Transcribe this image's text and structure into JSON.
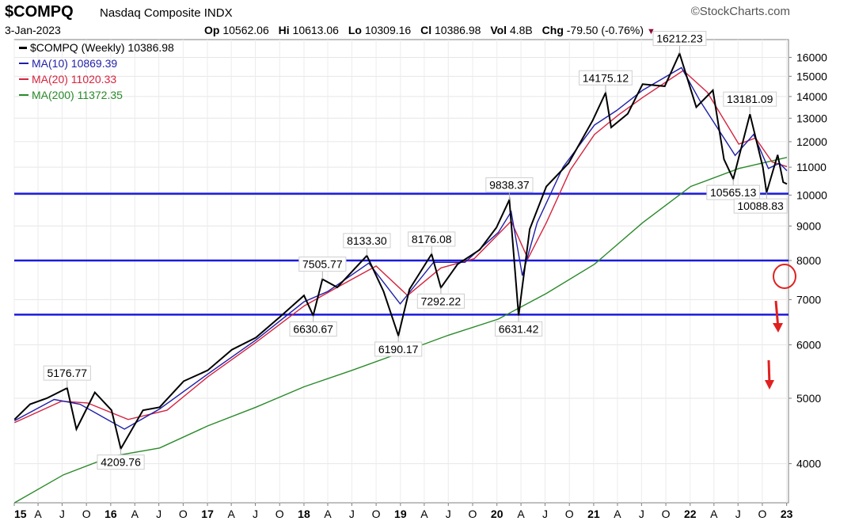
{
  "header": {
    "ticker": "$COMPQ",
    "name": "Nasdaq Composite",
    "exchange": "INDX",
    "brand": "StockCharts.com",
    "brand_icon": "copyright-icon",
    "date": "3-Jan-2023",
    "quote": [
      {
        "label": "Op",
        "value": "10562.06"
      },
      {
        "label": "Hi",
        "value": "10613.06"
      },
      {
        "label": "Lo",
        "value": "10309.16"
      },
      {
        "label": "Cl",
        "value": "10386.98"
      },
      {
        "label": "Vol",
        "value": "4.8B"
      },
      {
        "label": "Chg",
        "value": "-79.50 (-0.76%)"
      }
    ],
    "chg_icon": "down-triangle-icon"
  },
  "legend": [
    {
      "text": "$COMPQ (Weekly) 10386.98",
      "color": "#000000",
      "icon": "candlestick-icon"
    },
    {
      "text": "MA(10) 10869.39",
      "color": "#1f1fa8"
    },
    {
      "text": "MA(20) 11020.33",
      "color": "#d4243f"
    },
    {
      "text": "MA(200) 11372.35",
      "color": "#2a8a2a"
    }
  ],
  "chart_data": {
    "type": "line",
    "title": "$COMPQ (Weekly)",
    "y_scale": "log",
    "ylim": [
      3500,
      17000
    ],
    "y_ticks": [
      4000,
      5000,
      6000,
      7000,
      8000,
      9000,
      10000,
      11000,
      12000,
      13000,
      14000,
      15000,
      16000
    ],
    "xlim": [
      "2015-01-01",
      "2023-01-08"
    ],
    "x_ticks": [
      {
        "label": "15",
        "date": "2015-01-01",
        "bold": true
      },
      {
        "label": "A",
        "date": "2015-04-01"
      },
      {
        "label": "J",
        "date": "2015-07-01"
      },
      {
        "label": "O",
        "date": "2015-10-01"
      },
      {
        "label": "16",
        "date": "2016-01-01",
        "bold": true
      },
      {
        "label": "A",
        "date": "2016-04-01"
      },
      {
        "label": "J",
        "date": "2016-07-01"
      },
      {
        "label": "O",
        "date": "2016-10-01"
      },
      {
        "label": "17",
        "date": "2017-01-01",
        "bold": true
      },
      {
        "label": "A",
        "date": "2017-04-01"
      },
      {
        "label": "J",
        "date": "2017-07-01"
      },
      {
        "label": "O",
        "date": "2017-10-01"
      },
      {
        "label": "18",
        "date": "2018-01-01",
        "bold": true
      },
      {
        "label": "A",
        "date": "2018-04-01"
      },
      {
        "label": "J",
        "date": "2018-07-01"
      },
      {
        "label": "O",
        "date": "2018-10-01"
      },
      {
        "label": "19",
        "date": "2019-01-01",
        "bold": true
      },
      {
        "label": "A",
        "date": "2019-04-01"
      },
      {
        "label": "J",
        "date": "2019-07-01"
      },
      {
        "label": "O",
        "date": "2019-10-01"
      },
      {
        "label": "20",
        "date": "2020-01-01",
        "bold": true
      },
      {
        "label": "A",
        "date": "2020-04-01"
      },
      {
        "label": "J",
        "date": "2020-07-01"
      },
      {
        "label": "O",
        "date": "2020-10-01"
      },
      {
        "label": "21",
        "date": "2021-01-01",
        "bold": true
      },
      {
        "label": "A",
        "date": "2021-04-01"
      },
      {
        "label": "J",
        "date": "2021-07-01"
      },
      {
        "label": "O",
        "date": "2021-10-01"
      },
      {
        "label": "22",
        "date": "2022-01-01",
        "bold": true
      },
      {
        "label": "A",
        "date": "2022-04-01"
      },
      {
        "label": "J",
        "date": "2022-07-01"
      },
      {
        "label": "O",
        "date": "2022-10-01"
      },
      {
        "label": "23",
        "date": "2023-01-01",
        "bold": true
      }
    ],
    "grid": true,
    "legend_position": "top-left",
    "series": [
      {
        "name": "$COMPQ (Weekly)",
        "color": "#000000",
        "points": [
          [
            "2015-01-02",
            4650
          ],
          [
            "2015-03-02",
            4900
          ],
          [
            "2015-05-04",
            5000
          ],
          [
            "2015-07-20",
            5176.77
          ],
          [
            "2015-08-24",
            4500
          ],
          [
            "2015-11-02",
            5100
          ],
          [
            "2016-01-04",
            4800
          ],
          [
            "2016-02-08",
            4209.76
          ],
          [
            "2016-05-02",
            4800
          ],
          [
            "2016-07-04",
            4850
          ],
          [
            "2016-10-03",
            5300
          ],
          [
            "2017-01-02",
            5500
          ],
          [
            "2017-04-03",
            5900
          ],
          [
            "2017-07-03",
            6150
          ],
          [
            "2017-10-02",
            6600
          ],
          [
            "2018-01-01",
            7100
          ],
          [
            "2018-02-05",
            6630.67
          ],
          [
            "2018-03-12",
            7505.77
          ],
          [
            "2018-05-07",
            7300
          ],
          [
            "2018-08-27",
            8133.3
          ],
          [
            "2018-10-29",
            7200
          ],
          [
            "2018-12-24",
            6190.17
          ],
          [
            "2019-02-04",
            7250
          ],
          [
            "2019-04-29",
            8176.08
          ],
          [
            "2019-06-03",
            7292.22
          ],
          [
            "2019-08-05",
            7900
          ],
          [
            "2019-10-28",
            8300
          ],
          [
            "2019-12-30",
            8950
          ],
          [
            "2020-02-17",
            9838.37
          ],
          [
            "2020-03-23",
            6631.42
          ],
          [
            "2020-05-04",
            8900
          ],
          [
            "2020-07-06",
            10300
          ],
          [
            "2020-09-28",
            11150
          ],
          [
            "2020-12-28",
            12900
          ],
          [
            "2021-02-15",
            14175.12
          ],
          [
            "2021-03-08",
            12600
          ],
          [
            "2021-05-10",
            13200
          ],
          [
            "2021-07-05",
            14600
          ],
          [
            "2021-09-27",
            14500
          ],
          [
            "2021-11-22",
            16212.23
          ],
          [
            "2022-01-24",
            13500
          ],
          [
            "2022-03-28",
            14300
          ],
          [
            "2022-05-09",
            11300
          ],
          [
            "2022-06-13",
            10565.13
          ],
          [
            "2022-08-15",
            13181.09
          ],
          [
            "2022-10-03",
            11000
          ],
          [
            "2022-10-17",
            10088.83
          ],
          [
            "2022-11-28",
            11470
          ],
          [
            "2022-12-19",
            10450
          ],
          [
            "2023-01-02",
            10386.98
          ]
        ]
      },
      {
        "name": "MA(10)",
        "color": "#1f1fa8",
        "points": [
          [
            "2015-01-02",
            4630
          ],
          [
            "2015-06-01",
            4980
          ],
          [
            "2015-09-07",
            4900
          ],
          [
            "2016-02-22",
            4500
          ],
          [
            "2016-07-04",
            4820
          ],
          [
            "2017-01-02",
            5430
          ],
          [
            "2017-07-03",
            6100
          ],
          [
            "2018-01-01",
            6950
          ],
          [
            "2018-04-02",
            7200
          ],
          [
            "2018-09-03",
            7930
          ],
          [
            "2018-12-31",
            6900
          ],
          [
            "2019-05-06",
            7950
          ],
          [
            "2019-09-02",
            7950
          ],
          [
            "2020-01-06",
            8800
          ],
          [
            "2020-02-24",
            9450
          ],
          [
            "2020-04-06",
            7600
          ],
          [
            "2020-06-01",
            9100
          ],
          [
            "2020-09-07",
            11000
          ],
          [
            "2021-01-04",
            12700
          ],
          [
            "2021-03-29",
            13350
          ],
          [
            "2021-07-05",
            14300
          ],
          [
            "2021-11-29",
            15450
          ],
          [
            "2022-02-07",
            13800
          ],
          [
            "2022-06-20",
            11450
          ],
          [
            "2022-08-29",
            12300
          ],
          [
            "2022-10-24",
            10950
          ],
          [
            "2022-12-05",
            11150
          ],
          [
            "2023-01-02",
            10869.39
          ]
        ]
      },
      {
        "name": "MA(20)",
        "color": "#d4243f",
        "points": [
          [
            "2015-01-02",
            4600
          ],
          [
            "2015-06-29",
            4950
          ],
          [
            "2015-10-05",
            4920
          ],
          [
            "2016-03-07",
            4650
          ],
          [
            "2016-08-01",
            4800
          ],
          [
            "2017-01-02",
            5380
          ],
          [
            "2017-07-03",
            6050
          ],
          [
            "2018-01-01",
            6850
          ],
          [
            "2018-05-07",
            7300
          ],
          [
            "2018-10-01",
            7850
          ],
          [
            "2019-01-28",
            7100
          ],
          [
            "2019-06-03",
            7800
          ],
          [
            "2019-10-07",
            8050
          ],
          [
            "2020-02-24",
            9150
          ],
          [
            "2020-04-27",
            8050
          ],
          [
            "2020-07-06",
            9100
          ],
          [
            "2020-10-05",
            10900
          ],
          [
            "2021-01-04",
            12300
          ],
          [
            "2021-04-05",
            13150
          ],
          [
            "2021-07-05",
            13950
          ],
          [
            "2021-12-06",
            15300
          ],
          [
            "2022-03-07",
            14200
          ],
          [
            "2022-07-04",
            11900
          ],
          [
            "2022-09-05",
            12150
          ],
          [
            "2022-11-07",
            11200
          ],
          [
            "2023-01-02",
            11020.33
          ]
        ]
      },
      {
        "name": "MA(200)",
        "color": "#2a8a2a",
        "points": [
          [
            "2015-01-02",
            3500
          ],
          [
            "2015-07-06",
            3850
          ],
          [
            "2016-01-04",
            4100
          ],
          [
            "2016-07-04",
            4220
          ],
          [
            "2017-01-02",
            4550
          ],
          [
            "2017-07-03",
            4850
          ],
          [
            "2018-01-01",
            5200
          ],
          [
            "2018-07-02",
            5500
          ],
          [
            "2019-01-07",
            5850
          ],
          [
            "2019-07-01",
            6200
          ],
          [
            "2020-01-06",
            6550
          ],
          [
            "2020-07-06",
            7150
          ],
          [
            "2021-01-04",
            7900
          ],
          [
            "2021-07-05",
            9100
          ],
          [
            "2022-01-03",
            10300
          ],
          [
            "2022-07-04",
            10950
          ],
          [
            "2023-01-02",
            11372.35
          ]
        ]
      }
    ],
    "horizontal_lines": [
      {
        "value": 10050,
        "color": "#1a1add"
      },
      {
        "value": 8000,
        "color": "#1a1add"
      },
      {
        "value": 6650,
        "color": "#1a1add"
      }
    ],
    "annotations": [
      {
        "text": "5176.77",
        "date": "2015-07-20",
        "value": 5176.77,
        "position": "above"
      },
      {
        "text": "4209.76",
        "date": "2016-02-08",
        "value": 4209.76,
        "position": "below"
      },
      {
        "text": "6630.67",
        "date": "2018-02-05",
        "value": 6630.67,
        "position": "below"
      },
      {
        "text": "7505.77",
        "date": "2018-03-12",
        "value": 7505.77,
        "position": "above"
      },
      {
        "text": "8133.30",
        "date": "2018-08-27",
        "value": 8133.3,
        "position": "above"
      },
      {
        "text": "6190.17",
        "date": "2018-12-24",
        "value": 6190.17,
        "position": "below"
      },
      {
        "text": "8176.08",
        "date": "2019-04-29",
        "value": 8176.08,
        "position": "above"
      },
      {
        "text": "7292.22",
        "date": "2019-06-03",
        "value": 7292.22,
        "position": "below"
      },
      {
        "text": "9838.37",
        "date": "2020-02-17",
        "value": 9838.37,
        "position": "above"
      },
      {
        "text": "6631.42",
        "date": "2020-03-23",
        "value": 6631.42,
        "position": "below"
      },
      {
        "text": "14175.12",
        "date": "2021-02-15",
        "value": 14175.12,
        "position": "above"
      },
      {
        "text": "16212.23",
        "date": "2021-11-22",
        "value": 16212.23,
        "position": "above"
      },
      {
        "text": "13181.09",
        "date": "2022-08-15",
        "value": 13181.09,
        "position": "above"
      },
      {
        "text": "10565.13",
        "date": "2022-06-13",
        "value": 10565.13,
        "position": "below"
      },
      {
        "text": "10088.83",
        "date": "2022-10-17",
        "value": 10088.83,
        "position": "below"
      }
    ]
  }
}
